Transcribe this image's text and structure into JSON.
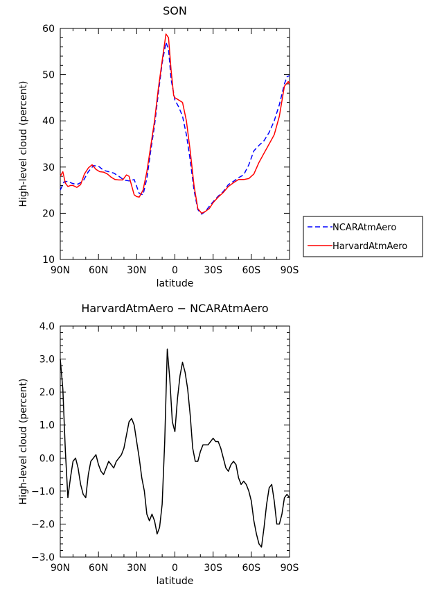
{
  "chart_data": [
    {
      "type": "line",
      "title": "SON",
      "xlabel": "latitude",
      "ylabel": "High-level cloud (percent)",
      "xlim": [
        90,
        -90
      ],
      "ylim": [
        10,
        60
      ],
      "x_ticks": [
        90,
        60,
        30,
        0,
        -30,
        -60,
        -90
      ],
      "x_tick_labels": [
        "90N",
        "60N",
        "30N",
        "0",
        "30S",
        "60S",
        "90S"
      ],
      "y_ticks": [
        10,
        20,
        30,
        40,
        50,
        60
      ],
      "y_tick_labels": [
        "10",
        "20",
        "30",
        "40",
        "50",
        "60"
      ],
      "legend": "right",
      "series": [
        {
          "name": "NCARAtmAero",
          "color": "#0000ff",
          "style": "dashed",
          "x": [
            90,
            87,
            84,
            80,
            76,
            72,
            68,
            64,
            60,
            56,
            52,
            48,
            44,
            40,
            36,
            32,
            28,
            25,
            22,
            19,
            16,
            13,
            10,
            7,
            5,
            3,
            1,
            0,
            -3,
            -6,
            -9,
            -12,
            -15,
            -18,
            -21,
            -24,
            -27,
            -30,
            -34,
            -38,
            -42,
            -46,
            -50,
            -54,
            -58,
            -62,
            -66,
            -70,
            -74,
            -78,
            -82,
            -86,
            -88,
            -90
          ],
          "y": [
            25.0,
            26.8,
            26.9,
            26.4,
            26.3,
            27.0,
            29.0,
            30.3,
            30.2,
            29.3,
            29.0,
            28.7,
            28.0,
            27.2,
            27.0,
            27.3,
            24.3,
            24.0,
            27.5,
            33.5,
            39.0,
            46.0,
            52.5,
            57.0,
            55.5,
            49.0,
            46.0,
            44.5,
            43.0,
            41.0,
            37.0,
            31.5,
            25.0,
            20.8,
            19.8,
            20.4,
            21.5,
            22.5,
            23.7,
            24.7,
            26.2,
            26.9,
            27.7,
            28.3,
            30.5,
            33.5,
            34.7,
            35.7,
            37.5,
            40.0,
            43.5,
            48.0,
            49.5,
            49.8
          ]
        },
        {
          "name": "HarvardAtmAero",
          "color": "#ff0000",
          "style": "solid",
          "x": [
            90,
            88,
            86,
            84,
            82,
            80,
            77,
            74,
            71,
            68,
            65,
            62,
            59,
            56,
            53,
            50,
            47,
            44,
            41,
            38,
            36,
            34,
            32,
            30,
            28,
            25,
            22,
            19,
            16,
            13,
            10,
            7,
            5,
            3,
            1,
            0,
            -3,
            -6,
            -9,
            -12,
            -15,
            -18,
            -21,
            -24,
            -27,
            -30,
            -34,
            -38,
            -42,
            -46,
            -50,
            -54,
            -58,
            -62,
            -66,
            -70,
            -74,
            -78,
            -82,
            -86,
            -89,
            -90
          ],
          "y": [
            28.0,
            29.0,
            26.5,
            25.8,
            26.0,
            26.0,
            25.6,
            26.2,
            28.5,
            29.8,
            30.5,
            29.5,
            29.0,
            28.9,
            28.5,
            27.8,
            27.3,
            27.2,
            27.2,
            28.3,
            28.0,
            26.0,
            24.0,
            23.6,
            23.5,
            25.0,
            29.0,
            34.5,
            40.0,
            47.0,
            53.0,
            58.8,
            58.0,
            51.0,
            45.5,
            45.0,
            44.5,
            44.0,
            40.0,
            33.5,
            26.0,
            21.0,
            20.0,
            20.4,
            21.0,
            22.3,
            23.5,
            24.5,
            25.8,
            26.6,
            27.3,
            27.3,
            27.5,
            28.5,
            31.0,
            33.0,
            35.0,
            37.0,
            41.0,
            47.5,
            48.5,
            48.0
          ]
        }
      ]
    },
    {
      "type": "line",
      "title": "HarvardAtmAero − NCARAtmAero",
      "xlabel": "latitude",
      "ylabel": "High-level cloud (percent)",
      "xlim": [
        90,
        -90
      ],
      "ylim": [
        -3.0,
        4.0
      ],
      "x_ticks": [
        90,
        60,
        30,
        0,
        -30,
        -60,
        -90
      ],
      "x_tick_labels": [
        "90N",
        "60N",
        "30N",
        "0",
        "30S",
        "60S",
        "90S"
      ],
      "y_ticks": [
        -3,
        -2,
        -1,
        0,
        1,
        2,
        3,
        4
      ],
      "y_tick_labels": [
        "−3.0",
        "−2.0",
        "−1.0",
        "0.0",
        "1.0",
        "2.0",
        "3.0",
        "4.0"
      ],
      "series": [
        {
          "color": "#000000",
          "style": "solid",
          "x": [
            90,
            88,
            86,
            84,
            82,
            80,
            78,
            76,
            74,
            72,
            70,
            68,
            66,
            64,
            62,
            60,
            58,
            56,
            54,
            52,
            50,
            48,
            46,
            44,
            42,
            40,
            38,
            36,
            34,
            32,
            30,
            28,
            26,
            24,
            22,
            20,
            18,
            16,
            14,
            12,
            10,
            8,
            6,
            4,
            2,
            0,
            -2,
            -4,
            -6,
            -8,
            -10,
            -12,
            -14,
            -16,
            -18,
            -20,
            -22,
            -24,
            -26,
            -28,
            -30,
            -32,
            -34,
            -36,
            -38,
            -40,
            -42,
            -44,
            -46,
            -48,
            -50,
            -52,
            -54,
            -56,
            -58,
            -60,
            -62,
            -64,
            -66,
            -68,
            -70,
            -72,
            -74,
            -76,
            -78,
            -80,
            -82,
            -84,
            -86,
            -88,
            -90
          ],
          "y": [
            3.0,
            2.1,
            0.2,
            -1.2,
            -0.6,
            -0.1,
            0.0,
            -0.3,
            -0.8,
            -1.1,
            -1.2,
            -0.5,
            -0.1,
            0.0,
            0.1,
            -0.2,
            -0.4,
            -0.5,
            -0.3,
            -0.1,
            -0.2,
            -0.3,
            -0.1,
            0.0,
            0.1,
            0.3,
            0.7,
            1.1,
            1.2,
            1.0,
            0.5,
            0.0,
            -0.6,
            -1.0,
            -1.7,
            -1.9,
            -1.7,
            -1.9,
            -2.3,
            -2.1,
            -1.4,
            0.5,
            3.3,
            2.4,
            1.1,
            0.8,
            1.8,
            2.5,
            2.9,
            2.6,
            2.1,
            1.3,
            0.3,
            -0.1,
            -0.1,
            0.2,
            0.4,
            0.4,
            0.4,
            0.5,
            0.6,
            0.5,
            0.5,
            0.3,
            0.0,
            -0.3,
            -0.4,
            -0.2,
            -0.1,
            -0.2,
            -0.6,
            -0.8,
            -0.7,
            -0.8,
            -1.0,
            -1.3,
            -1.9,
            -2.3,
            -2.6,
            -2.7,
            -2.1,
            -1.4,
            -0.9,
            -0.8,
            -1.3,
            -2.0,
            -2.0,
            -1.7,
            -1.2,
            -1.1,
            -1.2
          ]
        }
      ]
    }
  ]
}
